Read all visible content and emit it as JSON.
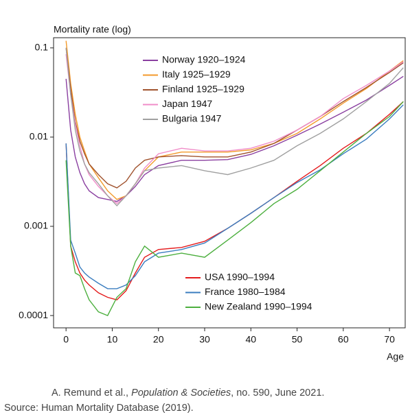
{
  "chart_data": {
    "type": "line",
    "y_label": "Mortality rate (log)",
    "x_label": "Age",
    "yscale": "log",
    "ylim": [
      7.28e-05,
      0.13
    ],
    "yticks": [
      0.1,
      0.01,
      0.001,
      0.0001
    ],
    "xlim": [
      -2.7,
      73.4
    ],
    "xticks": [
      0,
      10,
      20,
      30,
      40,
      50,
      60,
      70
    ],
    "x": [
      0,
      1,
      2,
      3,
      4,
      5,
      7,
      9,
      11,
      13,
      15,
      17,
      20,
      25,
      30,
      35,
      40,
      45,
      50,
      55,
      60,
      65,
      70,
      73
    ],
    "series": [
      {
        "name": "Norway 1920–1924",
        "color": "#8a3fa0",
        "values": [
          0.045,
          0.012,
          0.006,
          0.004,
          0.003,
          0.0025,
          0.0021,
          0.002,
          0.0019,
          0.0022,
          0.0028,
          0.0038,
          0.0048,
          0.0055,
          0.0055,
          0.0056,
          0.0064,
          0.008,
          0.0105,
          0.014,
          0.019,
          0.026,
          0.038,
          0.048
        ]
      },
      {
        "name": "Italy 1925–1929",
        "color": "#f39a2b",
        "values": [
          0.12,
          0.04,
          0.018,
          0.01,
          0.007,
          0.005,
          0.0035,
          0.0025,
          0.002,
          0.0022,
          0.003,
          0.0042,
          0.006,
          0.0068,
          0.0068,
          0.0068,
          0.0072,
          0.0085,
          0.011,
          0.016,
          0.024,
          0.035,
          0.055,
          0.072
        ]
      },
      {
        "name": "Finland 1925–1929",
        "color": "#a0522d",
        "values": [
          0.1,
          0.035,
          0.015,
          0.009,
          0.0065,
          0.005,
          0.0038,
          0.003,
          0.0027,
          0.0032,
          0.0045,
          0.0055,
          0.006,
          0.0062,
          0.006,
          0.006,
          0.0068,
          0.0085,
          0.012,
          0.017,
          0.025,
          0.036,
          0.053,
          0.068
        ]
      },
      {
        "name": "Japan 1947",
        "color": "#f08cc8",
        "values": [
          0.085,
          0.03,
          0.014,
          0.008,
          0.005,
          0.0038,
          0.0028,
          0.0022,
          0.0018,
          0.0022,
          0.003,
          0.0045,
          0.0065,
          0.0075,
          0.007,
          0.007,
          0.0075,
          0.009,
          0.012,
          0.017,
          0.027,
          0.038,
          0.055,
          0.07
        ]
      },
      {
        "name": "Bulgaria 1947",
        "color": "#a0a0a0",
        "values": [
          0.1,
          0.03,
          0.012,
          0.007,
          0.005,
          0.004,
          0.003,
          0.0022,
          0.0017,
          0.0022,
          0.003,
          0.0042,
          0.0045,
          0.0048,
          0.0042,
          0.0038,
          0.0045,
          0.0055,
          0.008,
          0.011,
          0.016,
          0.025,
          0.04,
          0.06
        ]
      },
      {
        "name": "USA 1990–1994",
        "color": "#e41a1c",
        "values": [
          0.0085,
          0.0006,
          0.0004,
          0.0003,
          0.00025,
          0.00022,
          0.00018,
          0.00016,
          0.00015,
          0.00019,
          0.0003,
          0.00045,
          0.00055,
          0.00058,
          0.00068,
          0.00095,
          0.0014,
          0.0021,
          0.0032,
          0.0048,
          0.0075,
          0.011,
          0.018,
          0.025
        ]
      },
      {
        "name": "France 1980–1984",
        "color": "#3a7dbf",
        "values": [
          0.0085,
          0.0007,
          0.0005,
          0.00035,
          0.0003,
          0.00027,
          0.00023,
          0.0002,
          0.0002,
          0.00022,
          0.00028,
          0.0004,
          0.0005,
          0.00055,
          0.00065,
          0.00095,
          0.0014,
          0.0021,
          0.0031,
          0.0043,
          0.0065,
          0.0095,
          0.016,
          0.023
        ]
      },
      {
        "name": "New Zealand 1990–1994",
        "color": "#4caf3e",
        "values": [
          0.0055,
          0.0006,
          0.0003,
          0.00028,
          0.0002,
          0.00015,
          0.00011,
          0.0001,
          0.00016,
          0.0002,
          0.0004,
          0.0006,
          0.00045,
          0.0005,
          0.00045,
          0.0007,
          0.0011,
          0.0018,
          0.0026,
          0.0042,
          0.0068,
          0.011,
          0.017,
          0.025
        ]
      }
    ],
    "caption": [
      "A. Remund et al., ",
      "Population & Societies",
      ", no. 590, June 2021."
    ],
    "source": "Source: Human Mortality Database (2019)."
  }
}
